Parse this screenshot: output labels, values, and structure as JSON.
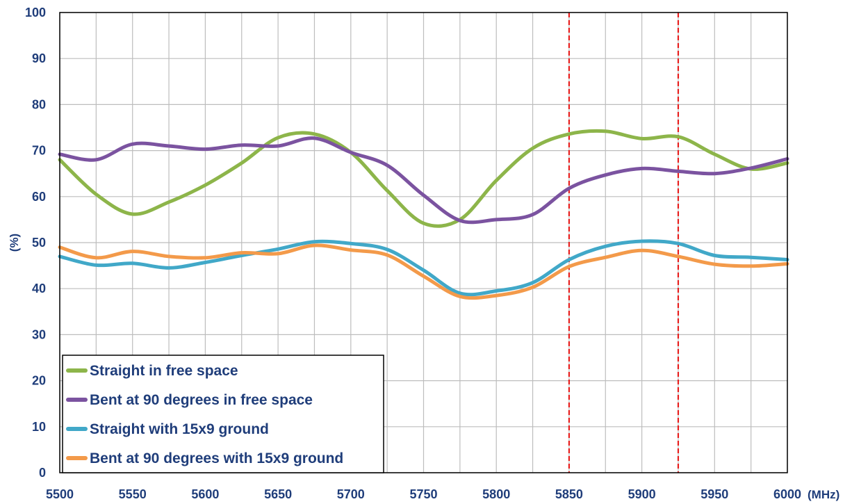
{
  "chart_data": {
    "type": "line",
    "title": "",
    "xlabel": "(MHz)",
    "ylabel": "(%)",
    "xlim": [
      5500,
      6000
    ],
    "ylim": [
      0,
      100
    ],
    "x_ticks": [
      5500,
      5550,
      5600,
      5650,
      5700,
      5750,
      5800,
      5850,
      5900,
      5950,
      6000
    ],
    "y_ticks": [
      0,
      10,
      20,
      30,
      40,
      50,
      60,
      70,
      80,
      90,
      100
    ],
    "grid": true,
    "legend_position": "bottom-left",
    "x": [
      5500,
      5525,
      5550,
      5575,
      5600,
      5625,
      5650,
      5675,
      5700,
      5725,
      5750,
      5775,
      5800,
      5825,
      5850,
      5875,
      5900,
      5925,
      5950,
      5975,
      6000
    ],
    "series": [
      {
        "name": "Straight in free space",
        "color": "#8DB54A",
        "values": [
          68,
          60.5,
          56.2,
          58.8,
          62.5,
          67.3,
          72.8,
          73.6,
          69.6,
          61.3,
          54.2,
          55,
          63.5,
          70.5,
          73.6,
          74.2,
          72.6,
          73,
          69.2,
          66,
          67.3
        ]
      },
      {
        "name": "Bent at 90 degrees in free space",
        "color": "#7B53A0",
        "values": [
          69.2,
          68,
          71.4,
          71,
          70.3,
          71.2,
          71,
          72.7,
          69.6,
          66.8,
          60.3,
          54.8,
          55,
          56.1,
          61.8,
          64.7,
          66.1,
          65.5,
          65,
          66.2,
          68.2
        ]
      },
      {
        "name": "Straight with 15x9 ground",
        "color": "#41A8C8",
        "values": [
          47,
          45.1,
          45.5,
          44.5,
          45.7,
          47.2,
          48.6,
          50.2,
          49.8,
          48.5,
          44,
          39,
          39.5,
          41.3,
          46.3,
          49.2,
          50.3,
          49.8,
          47.2,
          46.8,
          46.3
        ]
      },
      {
        "name": "Bent at 90 degrees with 15x9 ground",
        "color": "#F39A4A",
        "values": [
          49,
          46.7,
          48.1,
          47,
          46.7,
          47.8,
          47.6,
          49.4,
          48.4,
          47.3,
          42.7,
          38.3,
          38.5,
          40.3,
          44.8,
          46.8,
          48.3,
          47,
          45.3,
          44.9,
          45.4
        ]
      }
    ],
    "markers": {
      "color": "#E8201F",
      "x": [
        5850,
        5925
      ]
    }
  }
}
